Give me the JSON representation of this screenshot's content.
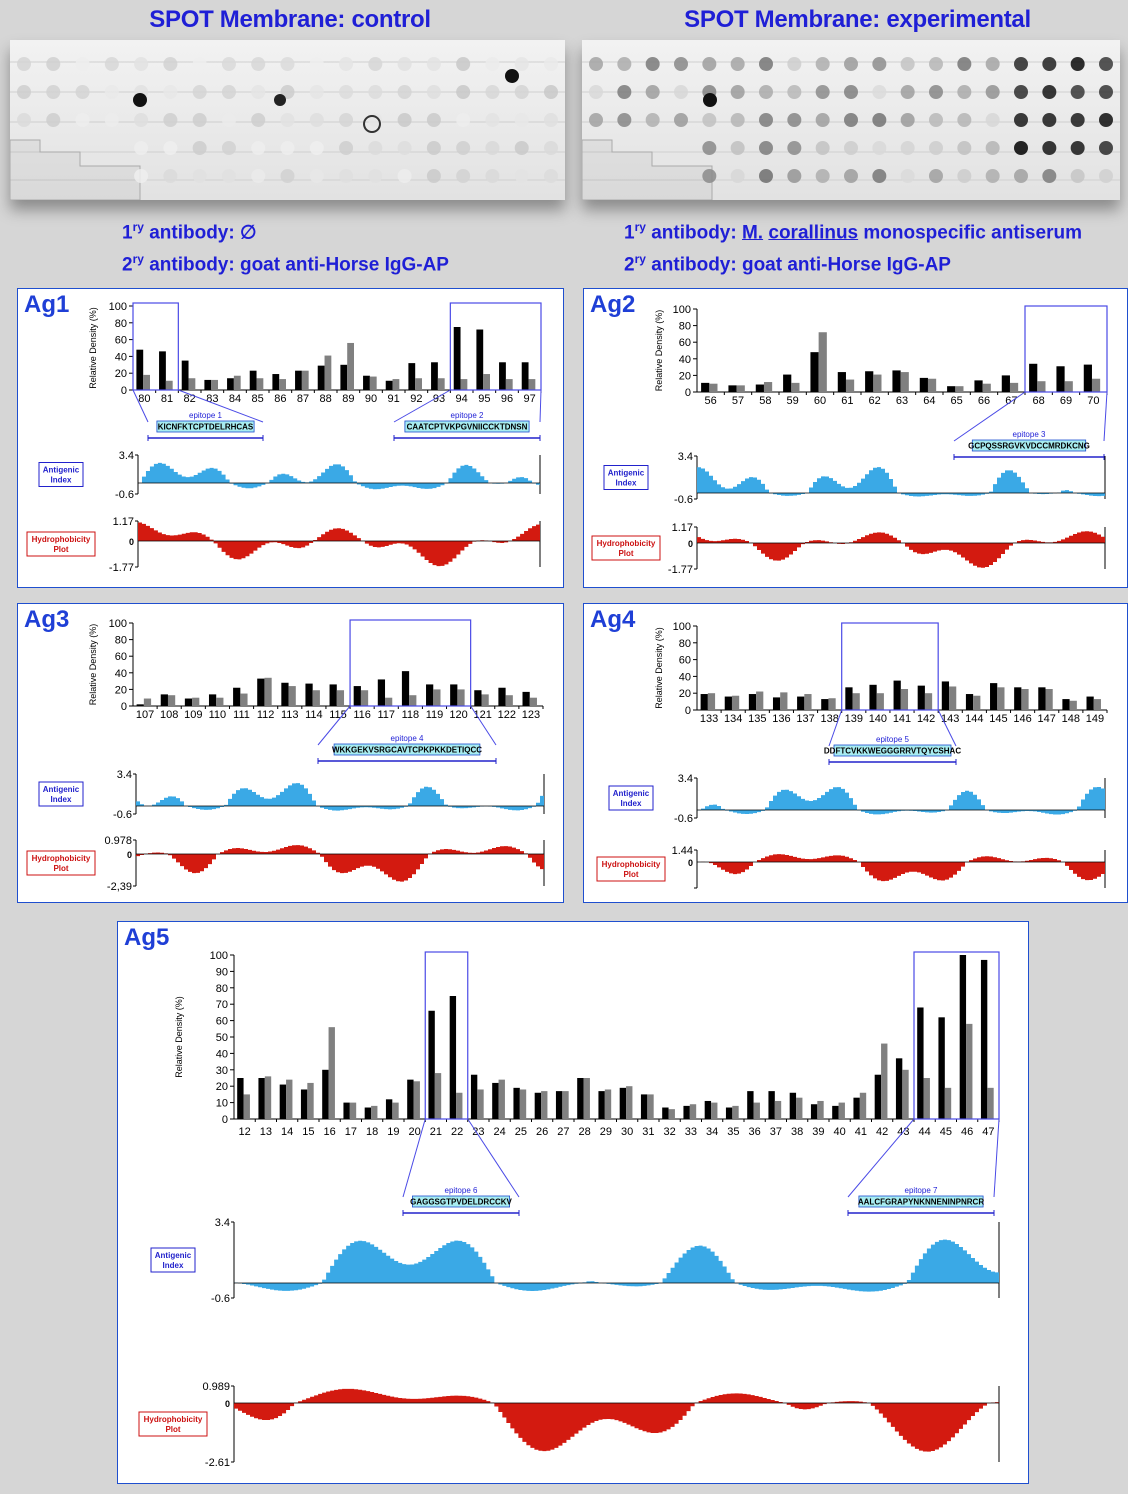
{
  "titles": {
    "control": "SPOT Membrane: control",
    "experimental": "SPOT Membrane: experimental"
  },
  "antibodies": {
    "control": {
      "primary_prefix": "1",
      "primary_sup": "ry",
      "primary_text": " antibody: ∅",
      "secondary_prefix": "2",
      "secondary_sup": "ry",
      "secondary_text": " antibody: goat anti-Horse IgG-AP"
    },
    "experimental": {
      "primary_prefix": "1",
      "primary_sup": "ry",
      "primary_text": " antibody: ",
      "primary_genus": "M.",
      "primary_species": "corallinus",
      "primary_rest": " monospecific antiserum",
      "secondary_prefix": "2",
      "secondary_sup": "ry",
      "secondary_text": " antibody: goat anti-Horse IgG-AP"
    }
  },
  "labels": {
    "antigenic_line1": "Antigenic",
    "antigenic_line2": "Index",
    "hydro_line1": "Hydrophobicity",
    "hydro_line2": "Plot",
    "ylabel": "Relative Density (%)"
  },
  "colors": {
    "title_blue": "#1f1fd6",
    "experimental_bar": "#000000",
    "control_bar": "#808080",
    "antigenic_fill": "#3aa9e6",
    "hydro_fill": "#d31a10",
    "epitope_box_fill": "#a7ecf0",
    "zoom_box": "#4a4ae6"
  },
  "chart_data": [
    {
      "panel": "Ag1",
      "type": "bar",
      "categories": [
        "80",
        "81",
        "82",
        "83",
        "84",
        "85",
        "86",
        "87",
        "88",
        "89",
        "90",
        "91",
        "92",
        "93",
        "94",
        "95",
        "96",
        "97"
      ],
      "series": [
        {
          "values": [
            48,
            46,
            35,
            12,
            14,
            23,
            19,
            23,
            29,
            30,
            17,
            11,
            32,
            33,
            75,
            72,
            33,
            33
          ]
        },
        {
          "values": [
            18,
            11,
            14,
            12,
            17,
            14,
            13,
            23,
            41,
            56,
            16,
            13,
            14,
            14,
            13,
            19,
            13,
            13
          ]
        }
      ],
      "ylim": [
        0,
        100
      ],
      "highlight": [
        [
          0,
          1
        ],
        [
          14,
          17
        ]
      ],
      "epitopes": [
        {
          "name": "epitope 1",
          "seq": "KICNFKTCPTDELRHCAS"
        },
        {
          "name": "epitope 2",
          "seq": "CAATCPTVKPGVNIICCKTDNSN"
        }
      ],
      "antigenic": {
        "max": "3.4",
        "min": "-0.6"
      },
      "hydro": {
        "max": "1.17",
        "zero": "0",
        "min": "-1.77"
      }
    },
    {
      "panel": "Ag2",
      "type": "bar",
      "categories": [
        "56",
        "57",
        "58",
        "59",
        "60",
        "61",
        "62",
        "63",
        "64",
        "65",
        "66",
        "67",
        "68",
        "69",
        "70"
      ],
      "series": [
        {
          "values": [
            11,
            8,
            9,
            21,
            48,
            24,
            25,
            26,
            17,
            7,
            14,
            20,
            34,
            31,
            33
          ]
        },
        {
          "values": [
            10,
            8,
            12,
            11,
            72,
            15,
            21,
            24,
            16,
            7,
            10,
            11,
            13,
            13,
            16
          ]
        }
      ],
      "ylim": [
        0,
        100
      ],
      "highlight": [
        [
          12,
          14
        ]
      ],
      "epitopes": [
        {
          "name": "epitope 3",
          "seq": "GCPQSSRGVKVDCCMRDKCNG"
        }
      ],
      "antigenic": {
        "max": "3.4",
        "min": "-0.6"
      },
      "hydro": {
        "max": "1.17",
        "zero": "0",
        "min": "-1.77"
      }
    },
    {
      "panel": "Ag3",
      "type": "bar",
      "categories": [
        "107",
        "108",
        "109",
        "110",
        "111",
        "112",
        "113",
        "114",
        "115",
        "116",
        "117",
        "118",
        "119",
        "120",
        "121",
        "122",
        "123"
      ],
      "series": [
        {
          "values": [
            2,
            14,
            9,
            14,
            22,
            33,
            28,
            27,
            26,
            24,
            32,
            42,
            26,
            26,
            19,
            22,
            17
          ]
        },
        {
          "values": [
            9,
            13,
            10,
            10,
            15,
            34,
            24,
            19,
            19,
            19,
            10,
            13,
            20,
            20,
            14,
            13,
            10
          ]
        }
      ],
      "ylim": [
        0,
        100
      ],
      "highlight": [
        [
          9,
          13
        ]
      ],
      "epitopes": [
        {
          "name": "epitope 4",
          "seq": "WKKGEKVSRGCAVTCPKPKKDETIQCC"
        }
      ],
      "antigenic": {
        "max": "3.4",
        "min": "-0.6"
      },
      "hydro": {
        "max": "0.978",
        "zero": "0",
        "min": "-2,39"
      }
    },
    {
      "panel": "Ag4",
      "type": "bar",
      "categories": [
        "133",
        "134",
        "135",
        "136",
        "137",
        "138",
        "139",
        "140",
        "141",
        "142",
        "143",
        "144",
        "145",
        "146",
        "147",
        "148",
        "149"
      ],
      "series": [
        {
          "values": [
            19,
            16,
            19,
            15,
            16,
            13,
            27,
            30,
            35,
            29,
            34,
            19,
            32,
            27,
            27,
            13,
            16
          ]
        },
        {
          "values": [
            20,
            17,
            22,
            21,
            19,
            14,
            20,
            20,
            25,
            20,
            28,
            17,
            27,
            25,
            25,
            11,
            13
          ]
        }
      ],
      "ylim": [
        0,
        100
      ],
      "highlight": [
        [
          6,
          9
        ]
      ],
      "epitopes": [
        {
          "name": "epitope 5",
          "seq": "DDFTCVKKWEGGGRRVTQYCSHAC"
        }
      ],
      "antigenic": {
        "max": "3.4",
        "min": "-0.6"
      },
      "hydro": {
        "max": "1.44",
        "zero": "0",
        "min": ""
      }
    },
    {
      "panel": "Ag5",
      "type": "bar",
      "categories": [
        "12",
        "13",
        "14",
        "15",
        "16",
        "17",
        "18",
        "19",
        "20",
        "21",
        "22",
        "23",
        "24",
        "25",
        "26",
        "27",
        "28",
        "29",
        "30",
        "31",
        "32",
        "33",
        "34",
        "35",
        "36",
        "37",
        "38",
        "39",
        "40",
        "41",
        "42",
        "43",
        "44",
        "45",
        "46",
        "47"
      ],
      "series": [
        {
          "values": [
            25,
            25,
            21,
            18,
            30,
            10,
            7,
            12,
            24,
            66,
            75,
            27,
            22,
            19,
            16,
            17,
            25,
            17,
            19,
            15,
            7,
            8,
            11,
            7,
            17,
            17,
            16,
            9,
            8,
            13,
            27,
            37,
            68,
            62,
            100,
            97
          ]
        },
        {
          "values": [
            15,
            26,
            24,
            22,
            56,
            10,
            8,
            10,
            23,
            28,
            16,
            18,
            24,
            18,
            17,
            17,
            25,
            18,
            20,
            15,
            6,
            9,
            10,
            8,
            10,
            11,
            13,
            11,
            10,
            16,
            46,
            30,
            25,
            19,
            58,
            19
          ]
        }
      ],
      "ylim": [
        0,
        100
      ],
      "yticks": [
        0,
        10,
        20,
        30,
        40,
        50,
        60,
        70,
        80,
        90,
        100
      ],
      "highlight": [
        [
          9,
          10
        ],
        [
          32,
          35
        ]
      ],
      "epitopes": [
        {
          "name": "epitope 6",
          "seq": "GAGGSGTPVDELDRCCKV"
        },
        {
          "name": "epitope 7",
          "seq": "AALCFGRAPYNKNNENINPNRCR"
        }
      ],
      "antigenic": {
        "max": "3.4",
        "min": "-0.6"
      },
      "hydro": {
        "max": "0.989",
        "zero": "0",
        "min": "-2.61"
      }
    }
  ]
}
